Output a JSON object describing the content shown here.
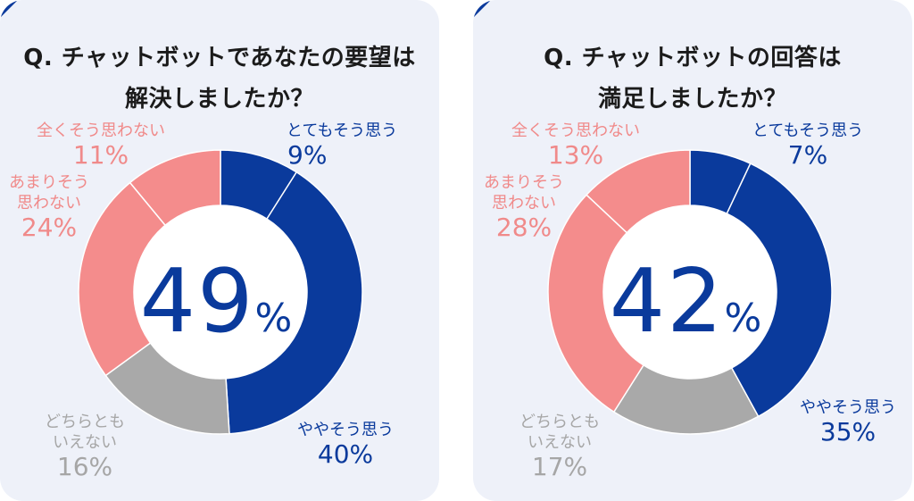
{
  "colors": {
    "blue": "#0a3a9c",
    "pink": "#f48c8c",
    "gray": "#a9a9a9",
    "panel": "#eef1f9",
    "hole": "#ffffff"
  },
  "chart_data": [
    {
      "type": "pie",
      "title_lines": [
        "Q. チャットボットであなたの要望は",
        "解決しましたか？"
      ],
      "center_value": "49",
      "center_unit": "%",
      "slices": [
        {
          "label": "とてもそう思う",
          "value": 9,
          "display": "9%",
          "color": "blue"
        },
        {
          "label": "ややそう思う",
          "value": 40,
          "display": "40%",
          "color": "blue"
        },
        {
          "label_lines": [
            "どちらとも",
            "いえない"
          ],
          "value": 16,
          "display": "16%",
          "color": "gray"
        },
        {
          "label_lines": [
            "あまりそう",
            "思わない"
          ],
          "value": 24,
          "display": "24%",
          "color": "pink"
        },
        {
          "label": "全くそう思わない",
          "value": 11,
          "display": "11%",
          "color": "pink"
        }
      ]
    },
    {
      "type": "pie",
      "title_lines": [
        "Q. チャットボットの回答は",
        "満足しましたか？"
      ],
      "center_value": "42",
      "center_unit": "%",
      "slices": [
        {
          "label": "とてもそう思う",
          "value": 7,
          "display": "7%",
          "color": "blue"
        },
        {
          "label": "ややそう思う",
          "value": 35,
          "display": "35%",
          "color": "blue"
        },
        {
          "label_lines": [
            "どちらとも",
            "いえない"
          ],
          "value": 17,
          "display": "17%",
          "color": "gray"
        },
        {
          "label_lines": [
            "あまりそう",
            "思わない"
          ],
          "value": 28,
          "display": "28%",
          "color": "pink"
        },
        {
          "label": "全くそう思わない",
          "value": 13,
          "display": "13%",
          "color": "pink"
        }
      ]
    }
  ]
}
